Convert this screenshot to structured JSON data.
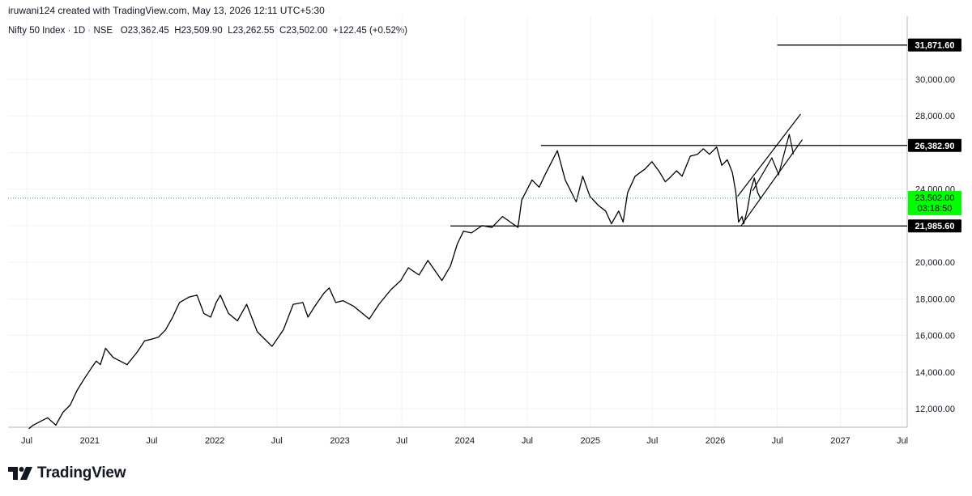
{
  "header": {
    "credit": "iruwani124 created with TradingView.com, May 13, 2026 12:11 UTC+5:30",
    "symbol": "Nifty 50 Index · 1D · NSE",
    "open": "O23,362.45",
    "high": "H23,509.90",
    "low": "L23,262.55",
    "close": "C23,502.00",
    "change": "+122.45 (+0.52%)"
  },
  "brand": {
    "name": "TradingView",
    "logo_icon": "tradingview-logo-icon"
  },
  "colors": {
    "line": "#000000",
    "current_price_bg": "#00ff00",
    "current_price_line": "#22ab94",
    "tag_bg": "#000000"
  },
  "chart_data": {
    "type": "line",
    "title": "",
    "xlabel": "",
    "ylabel": "",
    "ylim": [
      10800,
      32600
    ],
    "y_ticks": [
      12000,
      14000,
      16000,
      18000,
      20000,
      22000,
      24000,
      26000,
      28000,
      30000
    ],
    "y_tick_labels": [
      "12,000.00",
      "14,000.00",
      "16,000.00",
      "18,000.00",
      "20,000.00",
      "",
      "24,000.00",
      "",
      "28,000.00",
      "30,000.00"
    ],
    "x_ticks": [
      "Jul",
      "2021",
      "Jul",
      "2022",
      "Jul",
      "2023",
      "Jul",
      "2024",
      "Jul",
      "2025",
      "Jul",
      "2026",
      "Jul",
      "2027",
      "Jul"
    ],
    "x_tick_dates": [
      "2020-07-01",
      "2021-01-01",
      "2021-07-01",
      "2022-01-01",
      "2022-07-01",
      "2023-01-01",
      "2023-07-01",
      "2024-01-01",
      "2024-07-01",
      "2025-01-01",
      "2025-07-01",
      "2026-01-01",
      "2026-07-01",
      "2027-01-01",
      "2027-07-01"
    ],
    "series": [
      {
        "name": "",
        "x": [
          "2020-07-07",
          "2020-07-20",
          "2020-08-10",
          "2020-08-31",
          "2020-09-24",
          "2020-10-15",
          "2020-11-05",
          "2020-11-25",
          "2020-12-15",
          "2021-01-05",
          "2021-01-20",
          "2021-02-01",
          "2021-02-16",
          "2021-03-10",
          "2021-04-20",
          "2021-05-20",
          "2021-06-10",
          "2021-07-01",
          "2021-07-20",
          "2021-08-10",
          "2021-08-31",
          "2021-09-20",
          "2021-10-18",
          "2021-11-10",
          "2021-11-30",
          "2021-12-20",
          "2022-01-05",
          "2022-01-17",
          "2022-02-10",
          "2022-03-08",
          "2022-04-04",
          "2022-05-05",
          "2022-06-17",
          "2022-07-20",
          "2022-08-18",
          "2022-09-15",
          "2022-09-30",
          "2022-10-20",
          "2022-11-15",
          "2022-12-01",
          "2022-12-20",
          "2023-01-10",
          "2023-02-10",
          "2023-03-28",
          "2023-04-25",
          "2023-05-30",
          "2023-06-28",
          "2023-07-20",
          "2023-08-20",
          "2023-09-15",
          "2023-10-26",
          "2023-11-20",
          "2023-12-10",
          "2023-12-28",
          "2024-01-20",
          "2024-02-20",
          "2024-03-20",
          "2024-04-20",
          "2024-05-20",
          "2024-06-04",
          "2024-06-15",
          "2024-07-15",
          "2024-08-05",
          "2024-08-20",
          "2024-09-27",
          "2024-10-20",
          "2024-11-21",
          "2024-12-10",
          "2024-12-31",
          "2025-01-25",
          "2025-02-15",
          "2025-03-04",
          "2025-03-25",
          "2025-04-07",
          "2025-04-20",
          "2025-05-12",
          "2025-06-10",
          "2025-06-30",
          "2025-07-20",
          "2025-08-08",
          "2025-08-20",
          "2025-09-10",
          "2025-09-26",
          "2025-10-20",
          "2025-11-10",
          "2025-11-27",
          "2025-12-15",
          "2026-01-05",
          "2026-01-20",
          "2026-02-05",
          "2026-02-20",
          "2026-03-02",
          "2026-03-10",
          "2026-03-20",
          "2026-03-25",
          "2026-04-05",
          "2026-04-15",
          "2026-04-25",
          "2026-05-05",
          "2026-05-13"
        ],
        "values": [
          10900,
          11100,
          11300,
          11500,
          11100,
          11800,
          12200,
          13000,
          13600,
          14200,
          14600,
          14400,
          15300,
          14800,
          14400,
          15100,
          15700,
          15800,
          15900,
          16300,
          17000,
          17800,
          18100,
          18200,
          17200,
          17000,
          17800,
          18200,
          17200,
          16800,
          17700,
          16200,
          15400,
          16300,
          17700,
          17800,
          17000,
          17600,
          18300,
          18600,
          17800,
          17900,
          17600,
          16900,
          17700,
          18500,
          19000,
          19700,
          19300,
          20100,
          19000,
          19800,
          21000,
          21700,
          21600,
          22000,
          21900,
          22500,
          22100,
          21900,
          23400,
          24500,
          24100,
          24700,
          26100,
          24500,
          23300,
          24700,
          23600,
          23100,
          22800,
          22100,
          22800,
          22200,
          23800,
          24700,
          25100,
          25500,
          25000,
          24400,
          24600,
          25000,
          24700,
          25800,
          25900,
          26200,
          25900,
          26300,
          25300,
          25600,
          24900,
          23800,
          22200,
          22500,
          22100,
          22900,
          24000,
          24600,
          23800,
          23502
        ]
      }
    ],
    "annotations": {
      "horizontal_levels": [
        {
          "price": 31871.6,
          "label": "31,871.60",
          "from": "2026-07-01"
        },
        {
          "price": 26382.9,
          "label": "26,382.90",
          "from": "2024-08-10"
        },
        {
          "price": 21985.6,
          "label": "21,985.60",
          "from": "2023-11-20"
        }
      ],
      "current_price": {
        "price": 23502,
        "label": "23,502.00",
        "countdown": "03:18:50"
      },
      "channel_upper": [
        [
          "2026-03-07",
          23600
        ],
        [
          "2026-09-07",
          28100
        ]
      ],
      "channel_lower": [
        [
          "2026-03-17",
          21985.6
        ],
        [
          "2026-09-12",
          26700
        ]
      ],
      "projection_path": [
        [
          "2026-04-20",
          23900
        ],
        [
          "2026-06-15",
          25700
        ],
        [
          "2026-07-05",
          24800
        ],
        [
          "2026-08-05",
          27000
        ],
        [
          "2026-08-17",
          25900
        ]
      ]
    }
  }
}
